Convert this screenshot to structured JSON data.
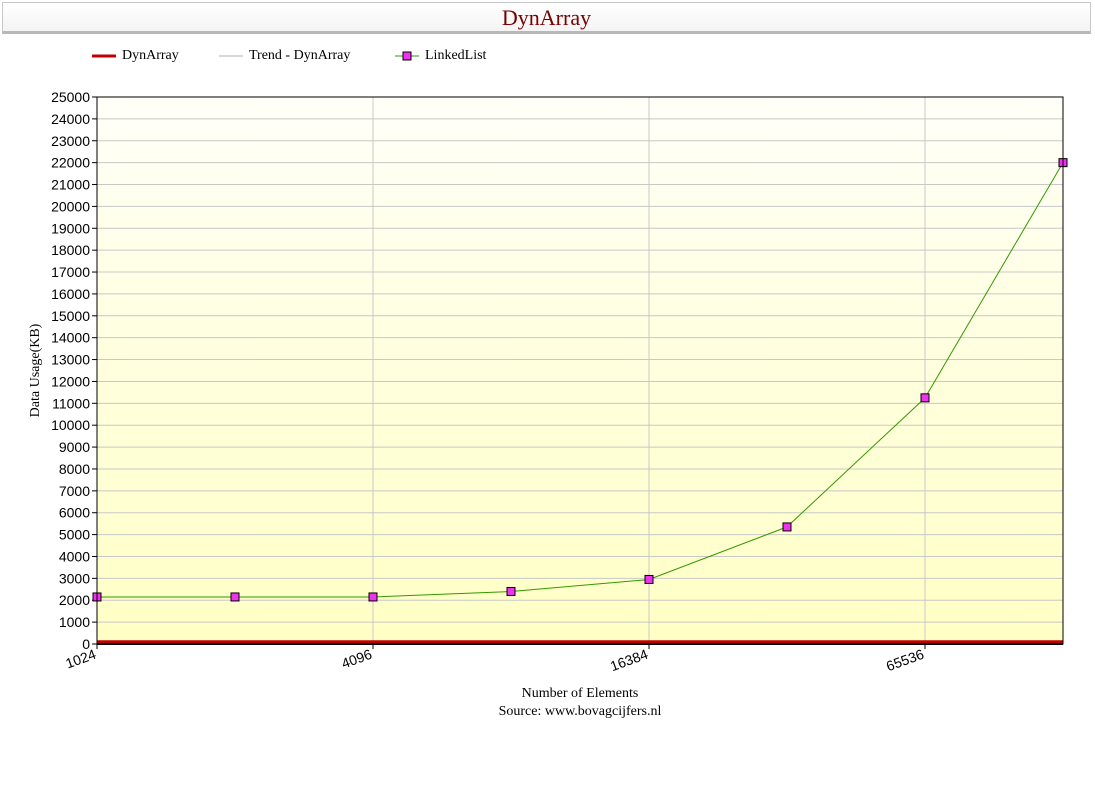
{
  "title": "DynArray",
  "source": "Source: www.bovagcijfers.nl",
  "legend": [
    {
      "label": "DynArray",
      "color": "#c00000",
      "style": "thick-line"
    },
    {
      "label": "Trend - DynArray",
      "color": "#b0b0b0",
      "style": "thin-line"
    },
    {
      "label": "LinkedList",
      "color": "#339900",
      "marker_color": "#ee33ee",
      "style": "line-square"
    }
  ],
  "chart_data": {
    "type": "line",
    "title": "DynArray",
    "xlabel": "Number of Elements",
    "ylabel": "Data Usage(KB)",
    "x_scale": "log2",
    "x": [
      1024,
      2048,
      4096,
      8192,
      16384,
      32768,
      65536,
      131072
    ],
    "x_tick_labels": [
      "1024",
      "4096",
      "16384",
      "65536"
    ],
    "x_ticks": [
      1024,
      4096,
      16384,
      65536
    ],
    "ylim": [
      0,
      25000
    ],
    "y_ticks": [
      0,
      1000,
      2000,
      3000,
      4000,
      5000,
      6000,
      7000,
      8000,
      9000,
      10000,
      11000,
      12000,
      13000,
      14000,
      15000,
      16000,
      17000,
      18000,
      19000,
      20000,
      21000,
      22000,
      23000,
      24000,
      25000
    ],
    "grid": true,
    "legend_position": "top-left",
    "series": [
      {
        "name": "DynArray",
        "color": "#c00000",
        "values": [
          100,
          100,
          100,
          100,
          100,
          100,
          100,
          100
        ]
      },
      {
        "name": "Trend - DynArray",
        "color": "#b0b0b0",
        "values": [
          0,
          0,
          0,
          0,
          0,
          0,
          0,
          0
        ]
      },
      {
        "name": "LinkedList",
        "color": "#339900",
        "marker_color": "#ee33ee",
        "values": [
          2150,
          2150,
          2150,
          2400,
          2950,
          5350,
          11250,
          22000
        ]
      }
    ]
  }
}
